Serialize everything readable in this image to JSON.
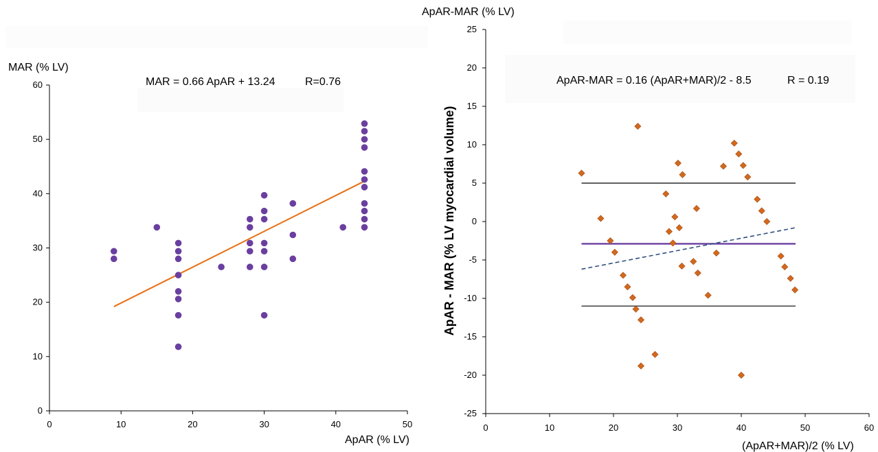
{
  "chart_data": [
    {
      "type": "scatter",
      "ylabel": "MAR (% LV)",
      "xlabel": "ApAR (% LV)",
      "equation": "MAR = 0.66 ApAR + 13.24",
      "r_label": "R=0.76",
      "xlim": [
        0,
        50
      ],
      "ylim": [
        0,
        60
      ],
      "xticks": [
        "0",
        "10",
        "20",
        "30",
        "40",
        "50"
      ],
      "yticks": [
        "0",
        "10",
        "20",
        "30",
        "40",
        "50",
        "60"
      ],
      "point_color": "#6a3fa0",
      "line_color": "#e87722",
      "points": [
        [
          9,
          29.4
        ],
        [
          9,
          28
        ],
        [
          15,
          33.8
        ],
        [
          18,
          30.9
        ],
        [
          18,
          29.4
        ],
        [
          18,
          28
        ],
        [
          18,
          25
        ],
        [
          18,
          22
        ],
        [
          18,
          20.6
        ],
        [
          18,
          17.6
        ],
        [
          18,
          11.8
        ],
        [
          24,
          26.5
        ],
        [
          28,
          35.3
        ],
        [
          28,
          33.8
        ],
        [
          28,
          30.9
        ],
        [
          28,
          29.4
        ],
        [
          28,
          26.5
        ],
        [
          30,
          39.7
        ],
        [
          30,
          36.8
        ],
        [
          30,
          35.3
        ],
        [
          30,
          30.9
        ],
        [
          30,
          29.4
        ],
        [
          30,
          26.5
        ],
        [
          30,
          17.6
        ],
        [
          34,
          38.2
        ],
        [
          34,
          32.4
        ],
        [
          34,
          28
        ],
        [
          41,
          33.8
        ],
        [
          44,
          52.9
        ],
        [
          44,
          51.5
        ],
        [
          44,
          50
        ],
        [
          44,
          48.5
        ],
        [
          44,
          44.1
        ],
        [
          44,
          42.6
        ],
        [
          44,
          41.2
        ],
        [
          44,
          38.2
        ],
        [
          44,
          36.8
        ],
        [
          44,
          35.3
        ],
        [
          44,
          33.8
        ]
      ],
      "fit_line": {
        "x": [
          9,
          44
        ],
        "y": [
          19.2,
          42.3
        ]
      }
    },
    {
      "type": "scatter",
      "title": "ApAR-MAR (% LV)",
      "ylabel": "ApAR - MAR (% LV myocardial volume)",
      "xlabel": "(ApAR+MAR)/2   (% LV)",
      "equation": "ApAR-MAR = 0.16 (ApAR+MAR)/2 - 8.5",
      "r_label": "R = 0.19",
      "xlim": [
        0,
        60
      ],
      "ylim": [
        -25,
        25
      ],
      "xticks": [
        "0",
        "10",
        "20",
        "30",
        "40",
        "50",
        "60"
      ],
      "yticks": [
        "25",
        "20",
        "15",
        "10",
        "5",
        "0",
        "-5",
        "-10",
        "-15",
        "-20",
        "-25"
      ],
      "point_color": "#d2691e",
      "mean_color": "#6a3fa0",
      "trend_color": "#2f4f7f",
      "points": [
        [
          15,
          6.3
        ],
        [
          18,
          0.4
        ],
        [
          19.5,
          -2.5
        ],
        [
          20.2,
          -4
        ],
        [
          21.5,
          -7
        ],
        [
          22.2,
          -8.5
        ],
        [
          23,
          -9.9
        ],
        [
          23.5,
          -11.4
        ],
        [
          23.8,
          12.4
        ],
        [
          24.3,
          -12.8
        ],
        [
          24.3,
          -18.8
        ],
        [
          26.5,
          -17.3
        ],
        [
          28.2,
          3.6
        ],
        [
          28.7,
          -1.3
        ],
        [
          29.3,
          -2.8
        ],
        [
          29.6,
          0.6
        ],
        [
          30.1,
          7.6
        ],
        [
          30.3,
          -0.8
        ],
        [
          30.7,
          -5.8
        ],
        [
          30.8,
          6.1
        ],
        [
          32.5,
          -5.2
        ],
        [
          33,
          1.7
        ],
        [
          33.2,
          -6.7
        ],
        [
          34.8,
          -9.6
        ],
        [
          36.1,
          -4.1
        ],
        [
          37.2,
          7.2
        ],
        [
          38.9,
          10.2
        ],
        [
          39.6,
          8.8
        ],
        [
          40,
          -20
        ],
        [
          40.3,
          7.3
        ],
        [
          41,
          5.8
        ],
        [
          42.5,
          2.9
        ],
        [
          43.2,
          1.4
        ],
        [
          44,
          0
        ],
        [
          46.2,
          -4.5
        ],
        [
          46.8,
          -5.9
        ],
        [
          47.7,
          -7.4
        ],
        [
          48.4,
          -8.9
        ]
      ],
      "upper_limit": 5,
      "lower_limit": -11,
      "mean_diff": -2.9,
      "limit_x": [
        15,
        48.5
      ],
      "trend_line": {
        "x": [
          15,
          48.5
        ],
        "y": [
          -6.2,
          -0.8
        ]
      }
    }
  ]
}
